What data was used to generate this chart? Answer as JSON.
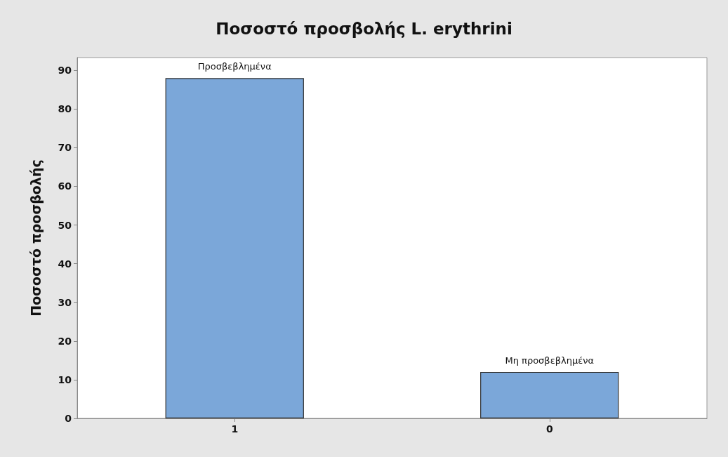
{
  "chart_data": {
    "type": "bar",
    "title": "Ποσοστό προσβολής L. erythrini",
    "ylabel": "Ποσοστό προσβολής",
    "categories": [
      "1",
      "0"
    ],
    "values": [
      88,
      12
    ],
    "color": "#7ba7d9",
    "ylim": [
      0,
      93.3
    ],
    "yticks": [
      0,
      10,
      20,
      30,
      40,
      50,
      60,
      70,
      80,
      90
    ],
    "grid": false,
    "annotations": [
      {
        "text": "Προσβεβλημένα",
        "x": "1",
        "y": 88
      },
      {
        "text": "Μη προσβεβλημένα",
        "x": "0",
        "y": 12
      }
    ]
  }
}
